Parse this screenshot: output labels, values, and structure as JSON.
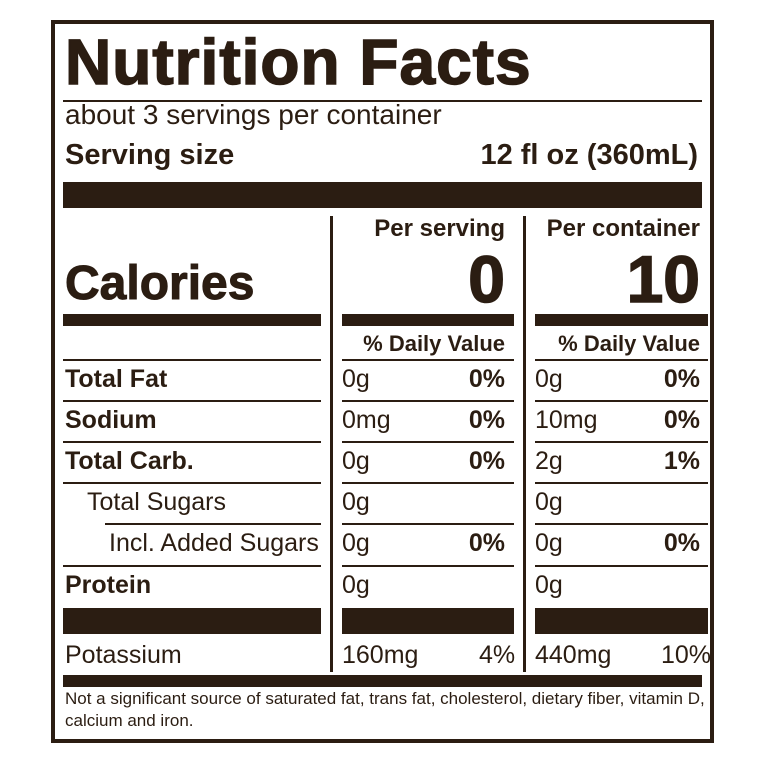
{
  "title": "Nutrition Facts",
  "servings_per_container": "about 3 servings per container",
  "serving_size": {
    "label": "Serving size",
    "value": "12 fl oz (360mL)"
  },
  "columns": {
    "per_serving": "Per serving",
    "per_container": "Per container"
  },
  "calories": {
    "label": "Calories",
    "per_serving": "0",
    "per_container": "10"
  },
  "daily_value_header": "% Daily Value",
  "nutrients": [
    {
      "name": "Total Fat",
      "bold": true,
      "serv_amt": "0g",
      "serv_dv": "0%",
      "cont_amt": "0g",
      "cont_dv": "0%"
    },
    {
      "name": "Sodium",
      "bold": true,
      "serv_amt": "0mg",
      "serv_dv": "0%",
      "cont_amt": "10mg",
      "cont_dv": "0%"
    },
    {
      "name": "Total Carb.",
      "bold": true,
      "serv_amt": "0g",
      "serv_dv": "0%",
      "cont_amt": "2g",
      "cont_dv": "1%"
    },
    {
      "name": "Total Sugars",
      "bold": false,
      "serv_amt": "0g",
      "serv_dv": "",
      "cont_amt": "0g",
      "cont_dv": ""
    },
    {
      "name": "Incl. Added Sugars",
      "bold": false,
      "serv_amt": "0g",
      "serv_dv": "0%",
      "cont_amt": "0g",
      "cont_dv": "0%"
    },
    {
      "name": "Protein",
      "bold": true,
      "serv_amt": "0g",
      "serv_dv": "",
      "cont_amt": "0g",
      "cont_dv": ""
    }
  ],
  "potassium": {
    "name": "Potassium",
    "serv_amt": "160mg",
    "serv_dv": "4%",
    "cont_amt": "440mg",
    "cont_dv": "10%"
  },
  "footnote": "Not a significant source of saturated fat, trans fat, cholesterol, dietary fiber, vitamin D, calcium and iron.",
  "colors": {
    "ink": "#2b1d12",
    "background": "#ffffff"
  }
}
